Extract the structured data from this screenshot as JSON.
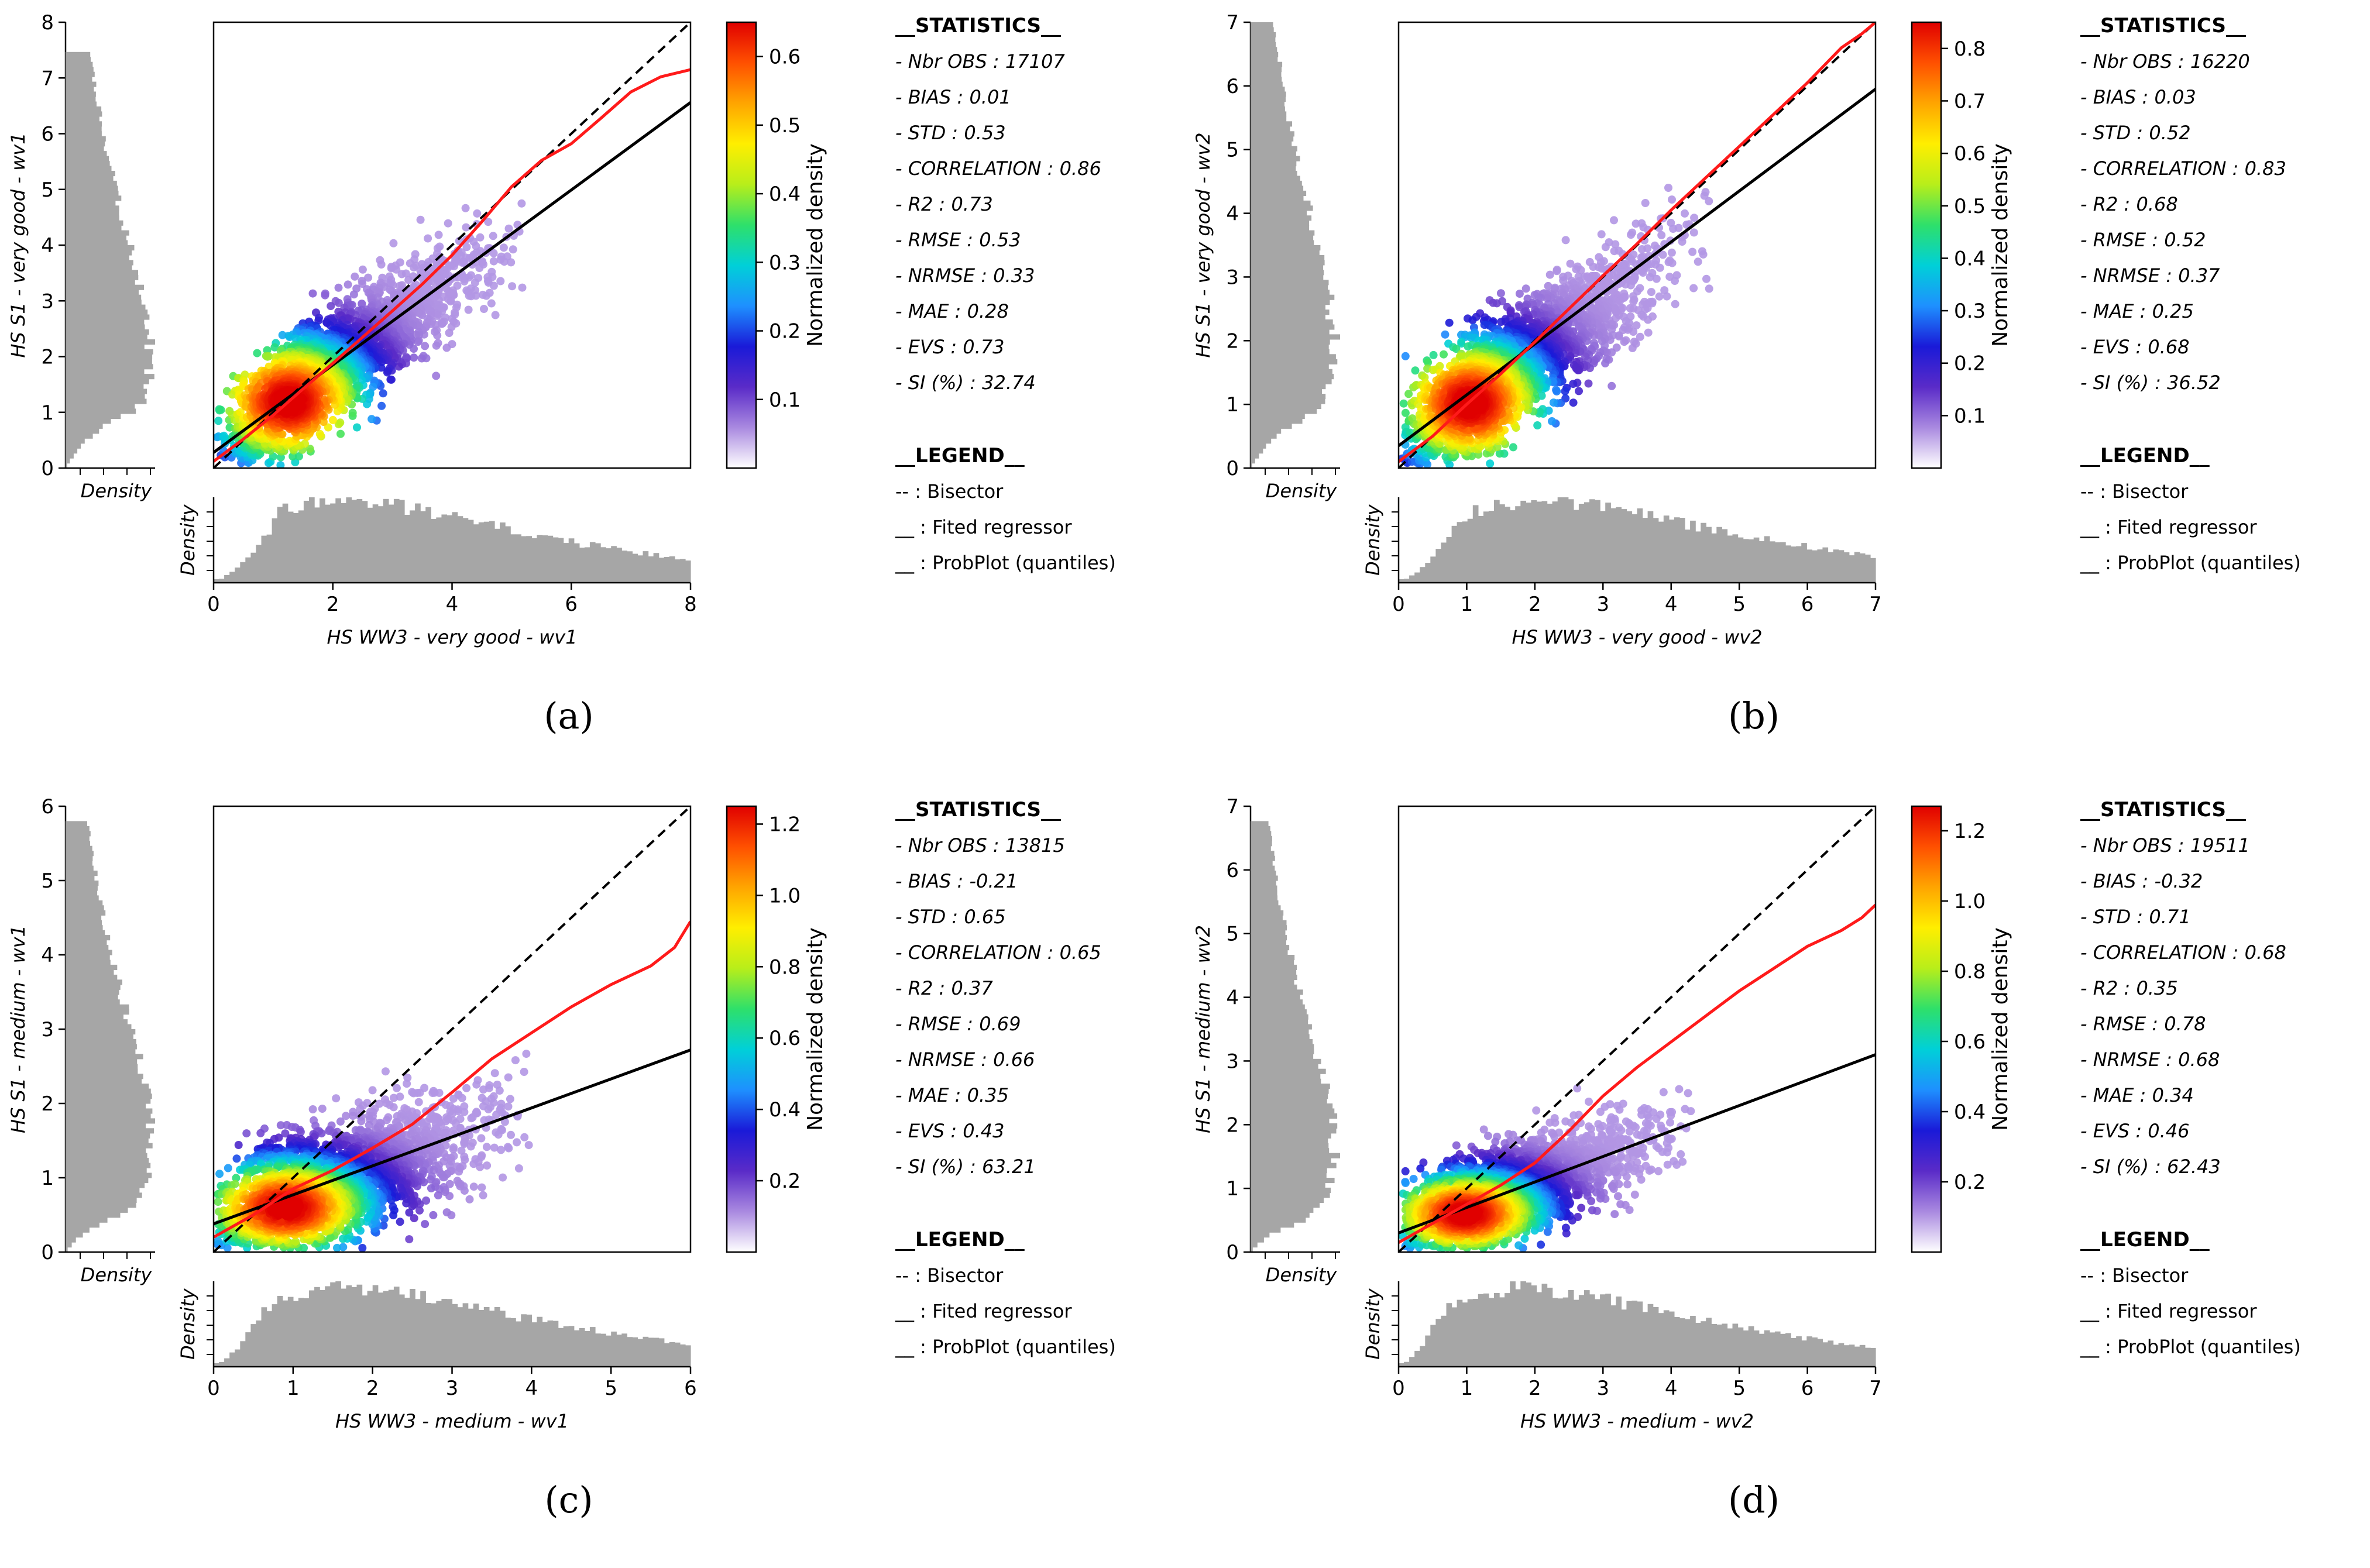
{
  "colors": {
    "bisector": "#000000",
    "regressor": "#000000",
    "probplot": "#ff1a1a",
    "histogram": "#a6a6a6",
    "colormap": [
      "#ffffff",
      "#a989e0",
      "#5a2bc8",
      "#1a1ad8",
      "#1e90ff",
      "#00d0d8",
      "#2ee06a",
      "#b8ee1a",
      "#ffee00",
      "#ffa500",
      "#ff5000",
      "#e00000"
    ]
  },
  "chart_data": [
    {
      "type": "scatter",
      "panel_label": "(a)",
      "xlabel": "HS WW3 - very good - wv1",
      "ylabel": "HS S1 - very good - wv1",
      "xlim": [
        0,
        8
      ],
      "ylim": [
        0,
        8
      ],
      "xticks": [
        "0",
        "2",
        "4",
        "6",
        "8"
      ],
      "yticks": [
        "0",
        "1",
        "2",
        "3",
        "4",
        "5",
        "6",
        "7",
        "8"
      ],
      "hist_x_label": "Density",
      "hist_y_label": "Density",
      "colorbar": {
        "label": "Normalized density",
        "max": 0.65,
        "ticks": [
          "0.1",
          "0.2",
          "0.3",
          "0.4",
          "0.5",
          "0.6"
        ]
      },
      "regression": {
        "slope": 0.785,
        "intercept": 0.28
      },
      "probplot": {
        "x": [
          0,
          0.5,
          1,
          1.5,
          2,
          2.5,
          3,
          3.5,
          4,
          4.5,
          5,
          5.5,
          6,
          6.5,
          7,
          7.5,
          8
        ],
        "y": [
          0.12,
          0.52,
          0.95,
          1.42,
          1.88,
          2.35,
          2.82,
          3.3,
          3.82,
          4.42,
          5.05,
          5.52,
          5.82,
          6.28,
          6.75,
          7.02,
          7.15
        ]
      },
      "statistics_title": "__STATISTICS__",
      "statistics": [
        "- Nbr OBS : 17107",
        "- BIAS : 0.01",
        "- STD  : 0.53",
        "- CORRELATION : 0.86",
        "- R2 : 0.73",
        "- RMSE  : 0.53",
        "- NRMSE : 0.33",
        "- MAE : 0.28",
        "- EVS : 0.73",
        "- SI (%) : 32.74"
      ],
      "legend_title": "__LEGEND__",
      "legend": [
        "-- : Bisector",
        "__ : Fited regressor",
        "__ : ProbPlot (quantiles)"
      ],
      "cloud": {
        "xc": 1.8,
        "yc": 1.7,
        "sx": 1.05,
        "sy": 0.9,
        "rho": 0.86,
        "xmax": 5.2,
        "ymax": 4.9
      },
      "hist_x": {
        "peak": 1.1,
        "tail": 0.42,
        "max": 8
      },
      "hist_y": {
        "peak": 1.1,
        "tail": 0.45,
        "max": 7.5
      }
    },
    {
      "type": "scatter",
      "panel_label": "(b)",
      "xlabel": "HS WW3 - very good - wv2",
      "ylabel": "HS S1 - very good - wv2",
      "xlim": [
        0,
        7
      ],
      "ylim": [
        0,
        7
      ],
      "xticks": [
        "0",
        "1",
        "2",
        "3",
        "4",
        "5",
        "6",
        "7"
      ],
      "yticks": [
        "0",
        "1",
        "2",
        "3",
        "4",
        "5",
        "6",
        "7"
      ],
      "hist_x_label": "Density",
      "hist_y_label": "Density",
      "colorbar": {
        "label": "Normalized density",
        "max": 0.85,
        "ticks": [
          "0.1",
          "0.2",
          "0.3",
          "0.4",
          "0.5",
          "0.6",
          "0.7",
          "0.8"
        ]
      },
      "regression": {
        "slope": 0.8,
        "intercept": 0.35
      },
      "probplot": {
        "x": [
          0,
          0.5,
          1,
          1.5,
          2,
          2.5,
          3,
          3.5,
          4,
          4.5,
          5,
          5.5,
          6,
          6.5,
          6.8,
          7
        ],
        "y": [
          0.1,
          0.5,
          1.0,
          1.48,
          1.98,
          2.5,
          3.02,
          3.52,
          4.05,
          4.55,
          5.05,
          5.55,
          6.05,
          6.6,
          6.82,
          7.0
        ]
      },
      "statistics_title": "__STATISTICS__",
      "statistics": [
        "- Nbr OBS : 16220",
        "- BIAS : 0.03",
        "- STD  : 0.52",
        "- CORRELATION : 0.83",
        "- R2 : 0.68",
        "- RMSE  : 0.52",
        "- NRMSE : 0.37",
        "- MAE : 0.25",
        "- EVS : 0.68",
        "- SI (%) : 36.52"
      ],
      "legend_title": "__LEGEND__",
      "legend": [
        "-- : Bisector",
        "__ : Fited regressor",
        "__ : ProbPlot (quantiles)"
      ],
      "cloud": {
        "xc": 1.5,
        "yc": 1.45,
        "sx": 0.9,
        "sy": 0.8,
        "rho": 0.83,
        "xmax": 4.6,
        "ymax": 4.5
      },
      "hist_x": {
        "peak": 0.9,
        "tail": 0.45,
        "max": 7
      },
      "hist_y": {
        "peak": 0.9,
        "tail": 0.48,
        "max": 7
      }
    },
    {
      "type": "scatter",
      "panel_label": "(c)",
      "xlabel": "HS WW3 - medium - wv1",
      "ylabel": "HS S1 - medium - wv1",
      "xlim": [
        0,
        6
      ],
      "ylim": [
        0,
        6
      ],
      "xticks": [
        "0",
        "1",
        "2",
        "3",
        "4",
        "5",
        "6"
      ],
      "yticks": [
        "0",
        "1",
        "2",
        "3",
        "4",
        "5",
        "6"
      ],
      "hist_x_label": "Density",
      "hist_y_label": "Density",
      "colorbar": {
        "label": "Normalized density",
        "max": 1.25,
        "ticks": [
          "0.2",
          "0.4",
          "0.6",
          "0.8",
          "1.0",
          "1.2"
        ]
      },
      "regression": {
        "slope": 0.39,
        "intercept": 0.38
      },
      "probplot": {
        "x": [
          0,
          0.5,
          1,
          1.5,
          2,
          2.5,
          3,
          3.5,
          4,
          4.5,
          5,
          5.5,
          5.8,
          6
        ],
        "y": [
          0.2,
          0.5,
          0.85,
          1.1,
          1.4,
          1.72,
          2.15,
          2.6,
          2.95,
          3.3,
          3.6,
          3.85,
          4.1,
          4.45
        ]
      },
      "statistics_title": "__STATISTICS__",
      "statistics": [
        "- Nbr OBS : 13815",
        "- BIAS : -0.21",
        "- STD  : 0.65",
        "- CORRELATION : 0.65",
        "- R2 : 0.37",
        "- RMSE  : 0.69",
        "- NRMSE : 0.66",
        "- MAE : 0.35",
        "- EVS : 0.43",
        "- SI (%) : 63.21"
      ],
      "legend_title": "__LEGEND__",
      "legend": [
        "-- : Bisector",
        "__ : Fited regressor",
        "__ : ProbPlot (quantiles)"
      ],
      "cloud": {
        "xc": 1.3,
        "yc": 0.85,
        "sx": 0.85,
        "sy": 0.5,
        "rho": 0.65,
        "xmax": 4.0,
        "ymax": 2.9
      },
      "hist_x": {
        "peak": 0.6,
        "tail": 0.55,
        "max": 6
      },
      "hist_y": {
        "peak": 0.5,
        "tail": 0.6,
        "max": 5.8
      }
    },
    {
      "type": "scatter",
      "panel_label": "(d)",
      "xlabel": "HS WW3 - medium - wv2",
      "ylabel": "HS S1 - medium - wv2",
      "xlim": [
        0,
        7
      ],
      "ylim": [
        0,
        7
      ],
      "xticks": [
        "0",
        "1",
        "2",
        "3",
        "4",
        "5",
        "6",
        "7"
      ],
      "yticks": [
        "0",
        "1",
        "2",
        "3",
        "4",
        "5",
        "6",
        "7"
      ],
      "hist_x_label": "Density",
      "hist_y_label": "Density",
      "colorbar": {
        "label": "Normalized density",
        "max": 1.27,
        "ticks": [
          "0.2",
          "0.4",
          "0.6",
          "0.8",
          "1.0",
          "1.2"
        ]
      },
      "regression": {
        "slope": 0.4,
        "intercept": 0.3
      },
      "probplot": {
        "x": [
          0,
          0.5,
          1,
          1.5,
          2,
          2.5,
          3,
          3.5,
          4,
          4.5,
          5,
          5.5,
          6,
          6.5,
          6.8,
          7
        ],
        "y": [
          0.15,
          0.45,
          0.75,
          1.05,
          1.4,
          1.9,
          2.45,
          2.9,
          3.3,
          3.7,
          4.1,
          4.45,
          4.8,
          5.05,
          5.25,
          5.45
        ]
      },
      "statistics_title": "__STATISTICS__",
      "statistics": [
        "- Nbr OBS : 19511",
        "- BIAS : -0.32",
        "- STD  : 0.71",
        "- CORRELATION : 0.68",
        "- R2 : 0.35",
        "- RMSE  : 0.78",
        "- NRMSE : 0.68",
        "- MAE : 0.34",
        "- EVS : 0.46",
        "- SI (%) : 62.43"
      ],
      "legend_title": "__LEGEND__",
      "legend": [
        "-- : Bisector",
        "__ : Fited regressor",
        "__ : ProbPlot (quantiles)"
      ],
      "cloud": {
        "xc": 1.4,
        "yc": 0.85,
        "sx": 0.9,
        "sy": 0.5,
        "rho": 0.68,
        "xmax": 4.3,
        "ymax": 2.9
      },
      "hist_x": {
        "peak": 0.6,
        "tail": 0.5,
        "max": 7
      },
      "hist_y": {
        "peak": 0.5,
        "tail": 0.55,
        "max": 6.8
      }
    }
  ]
}
